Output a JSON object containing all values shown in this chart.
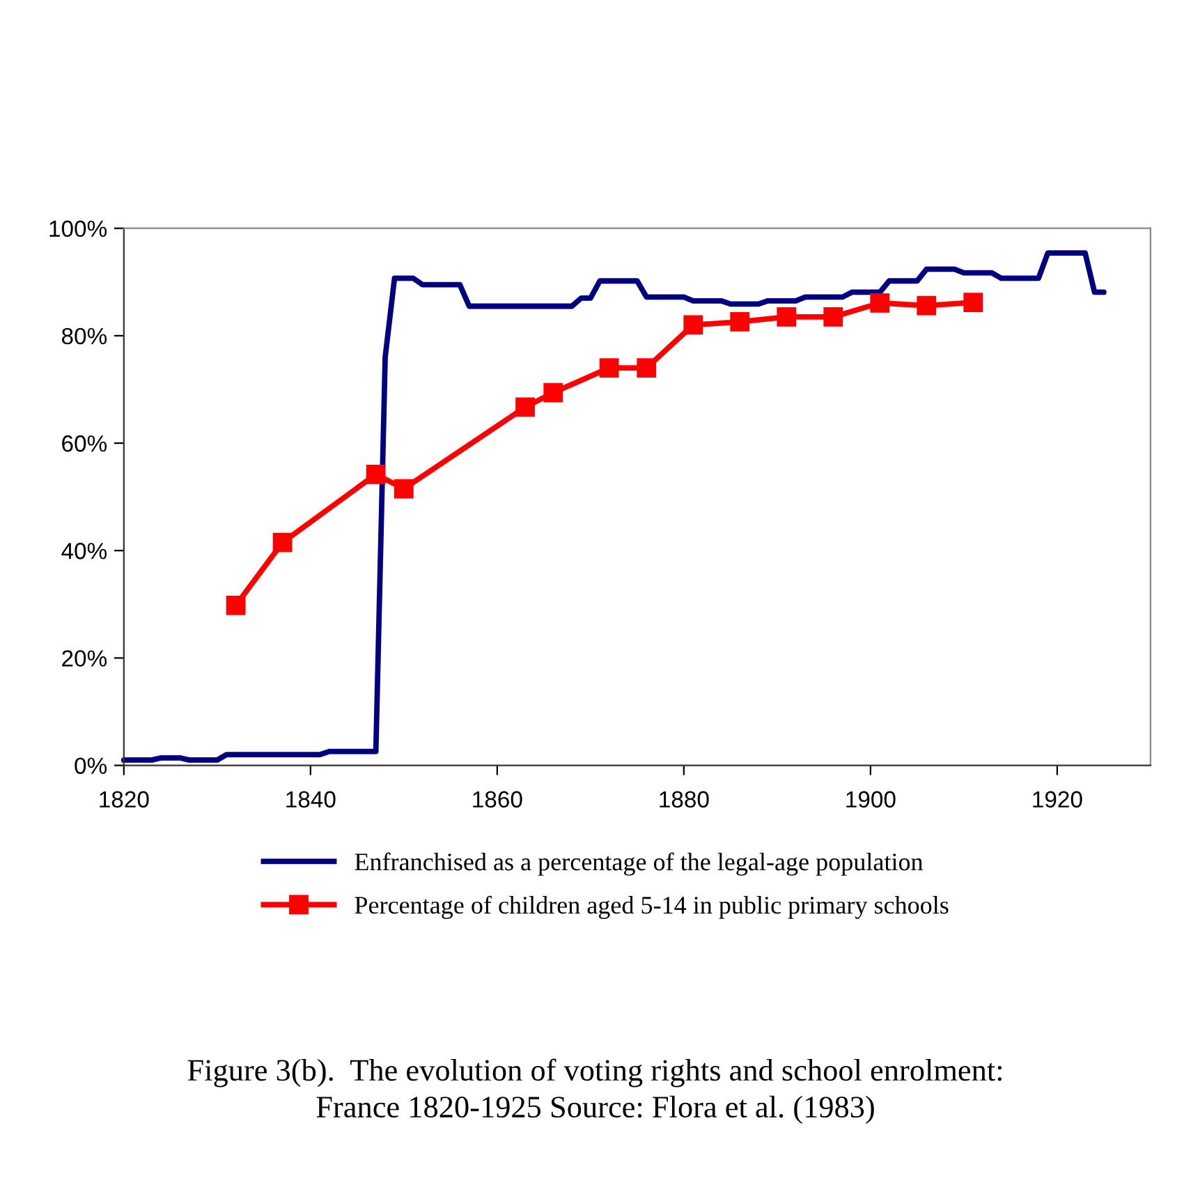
{
  "chart_data": {
    "type": "line",
    "annotations": [
      "Figure 3(b).  The evolution of voting rights and school enrolment:\nFrance 1820-1925 Source: Flora et al. (1983)"
    ],
    "xlim": [
      1820,
      1930
    ],
    "xticks": [
      1820,
      1840,
      1860,
      1880,
      1900,
      1920
    ],
    "ylim": [
      0,
      1
    ],
    "yticks": [
      {
        "value": 0,
        "label": "0%"
      },
      {
        "value": 0.2,
        "label": "20%"
      },
      {
        "value": 0.4,
        "label": "40%"
      },
      {
        "value": 0.6,
        "label": "60%"
      },
      {
        "value": 0.8,
        "label": "80%"
      },
      {
        "value": 1,
        "label": "100%"
      }
    ],
    "grid": false,
    "legend": "bottom",
    "series": [
      {
        "name": "Enfranchised as a percentage of the legal-age population",
        "color": "#000080",
        "marker": "none",
        "x": [
          1820,
          1823,
          1824,
          1826,
          1827,
          1830,
          1831,
          1841,
          1842,
          1847,
          1848,
          1849,
          1851,
          1852,
          1856,
          1857,
          1868,
          1869,
          1870,
          1871,
          1875,
          1876,
          1880,
          1881,
          1884,
          1885,
          1888,
          1889,
          1892,
          1893,
          1897,
          1898,
          1901,
          1902,
          1905,
          1906,
          1909,
          1910,
          1913,
          1914,
          1918,
          1919,
          1923,
          1924,
          1925
        ],
        "values": [
          0.01,
          0.01,
          0.014,
          0.014,
          0.01,
          0.01,
          0.02,
          0.02,
          0.026,
          0.026,
          0.76,
          0.907,
          0.907,
          0.895,
          0.895,
          0.855,
          0.855,
          0.87,
          0.87,
          0.902,
          0.902,
          0.872,
          0.872,
          0.865,
          0.865,
          0.859,
          0.859,
          0.865,
          0.865,
          0.872,
          0.872,
          0.881,
          0.881,
          0.902,
          0.902,
          0.924,
          0.924,
          0.917,
          0.917,
          0.907,
          0.907,
          0.954,
          0.954,
          0.881,
          0.881
        ]
      },
      {
        "name": "Percentage of children aged 5-14 in public primary schools",
        "color": "#ff0000",
        "marker": "square",
        "x": [
          1832,
          1837,
          1847,
          1850,
          1863,
          1866,
          1872,
          1876,
          1881,
          1886,
          1891,
          1896,
          1901,
          1906,
          1911
        ],
        "values": [
          0.298,
          0.415,
          0.542,
          0.515,
          0.667,
          0.694,
          0.74,
          0.74,
          0.82,
          0.826,
          0.835,
          0.835,
          0.861,
          0.856,
          0.862
        ]
      }
    ]
  }
}
